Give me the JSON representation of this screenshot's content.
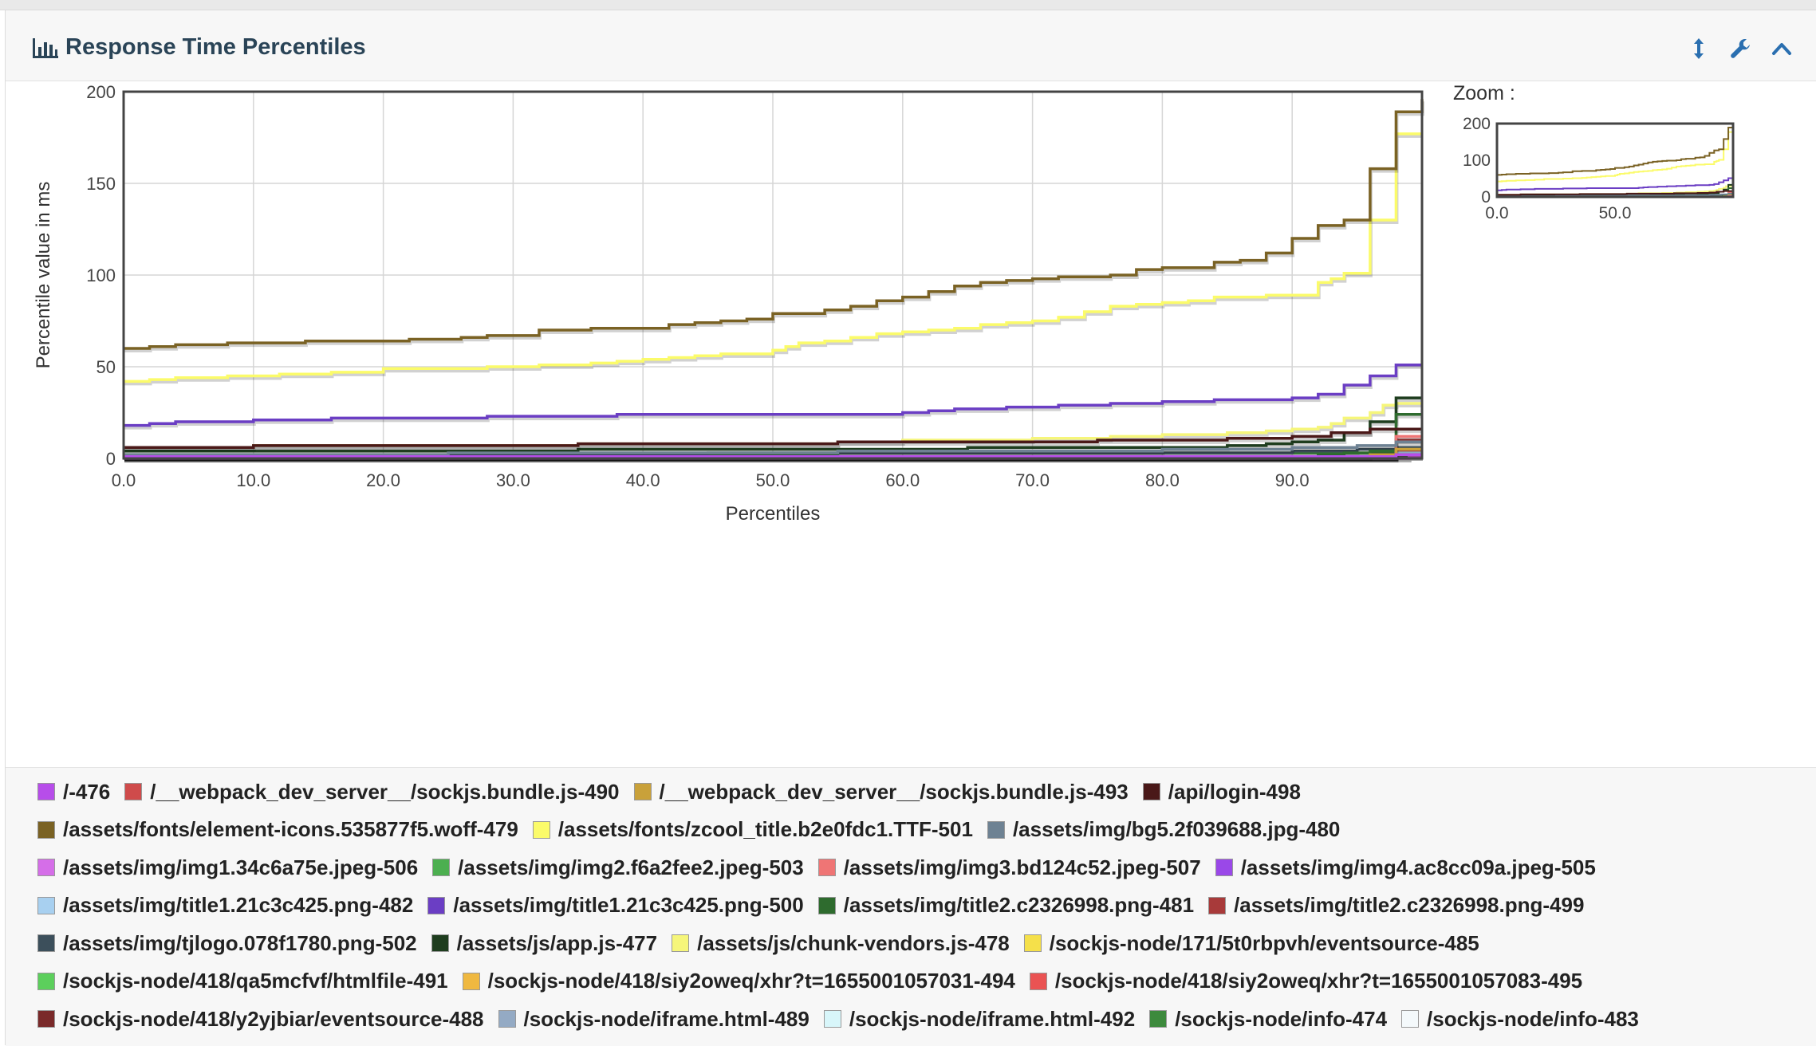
{
  "panel": {
    "title": "Response Time Percentiles",
    "icons": [
      "bar-chart-icon",
      "resize-vertical-icon",
      "wrench-icon",
      "chevron-up-icon"
    ],
    "accent": "#2a6fb0"
  },
  "zoom": {
    "label": "Zoom :",
    "y_ticks": [
      "200",
      "100",
      "0"
    ],
    "x_ticks": [
      "0.0",
      "50.0"
    ]
  },
  "chart_data": {
    "type": "line",
    "title": "",
    "xlabel": "Percentiles",
    "ylabel": "Percentile value in ms",
    "xlim": [
      0,
      100
    ],
    "ylim": [
      0,
      200
    ],
    "x_ticks": [
      "0.0",
      "10.0",
      "20.0",
      "30.0",
      "40.0",
      "50.0",
      "60.0",
      "70.0",
      "80.0",
      "90.0"
    ],
    "y_ticks": [
      "0",
      "50",
      "100",
      "150",
      "200"
    ],
    "grid": true,
    "legend_position": "bottom",
    "series": [
      {
        "name": "/-476",
        "color": "#b74dea",
        "points": [
          [
            0,
            1
          ],
          [
            96,
            1
          ],
          [
            98,
            2
          ],
          [
            100,
            2
          ]
        ]
      },
      {
        "name": "/__webpack_dev_server__/sockjs.bundle.js-490",
        "color": "#cf4b4b",
        "points": [
          [
            0,
            1
          ],
          [
            96,
            1
          ],
          [
            98,
            2
          ],
          [
            100,
            2
          ]
        ]
      },
      {
        "name": "/__webpack_dev_server__/sockjs.bundle.js-493",
        "color": "#c9a13a",
        "points": [
          [
            0,
            1
          ],
          [
            90,
            1
          ],
          [
            96,
            2
          ],
          [
            98,
            5
          ],
          [
            100,
            5
          ]
        ]
      },
      {
        "name": "/api/login-498",
        "color": "#4a1818",
        "points": [
          [
            0,
            6
          ],
          [
            6,
            6
          ],
          [
            10,
            7
          ],
          [
            30,
            7
          ],
          [
            35,
            8
          ],
          [
            50,
            8
          ],
          [
            55,
            9
          ],
          [
            70,
            9
          ],
          [
            75,
            10
          ],
          [
            85,
            11
          ],
          [
            90,
            12
          ],
          [
            93,
            14
          ],
          [
            96,
            16
          ],
          [
            98,
            16
          ],
          [
            100,
            16
          ]
        ]
      },
      {
        "name": "/assets/fonts/element-icons.535877f5.woff-479",
        "color": "#7a6224",
        "points": [
          [
            0,
            60
          ],
          [
            2,
            61
          ],
          [
            4,
            62
          ],
          [
            8,
            63
          ],
          [
            12,
            63
          ],
          [
            14,
            64
          ],
          [
            20,
            64
          ],
          [
            22,
            65
          ],
          [
            26,
            66
          ],
          [
            28,
            67
          ],
          [
            30,
            67
          ],
          [
            32,
            70
          ],
          [
            35,
            70
          ],
          [
            36,
            71
          ],
          [
            38,
            71
          ],
          [
            40,
            71
          ],
          [
            42,
            73
          ],
          [
            44,
            74
          ],
          [
            46,
            75
          ],
          [
            48,
            76
          ],
          [
            50,
            79
          ],
          [
            53,
            79
          ],
          [
            54,
            81
          ],
          [
            56,
            83
          ],
          [
            58,
            86
          ],
          [
            60,
            88
          ],
          [
            62,
            91
          ],
          [
            64,
            94
          ],
          [
            66,
            96
          ],
          [
            68,
            97
          ],
          [
            70,
            98
          ],
          [
            72,
            99
          ],
          [
            76,
            100
          ],
          [
            78,
            103
          ],
          [
            80,
            104
          ],
          [
            82,
            104
          ],
          [
            84,
            107
          ],
          [
            86,
            108
          ],
          [
            88,
            112
          ],
          [
            90,
            120
          ],
          [
            92,
            127
          ],
          [
            94,
            130
          ],
          [
            96,
            158
          ],
          [
            97,
            158
          ],
          [
            98,
            189
          ],
          [
            100,
            196
          ]
        ]
      },
      {
        "name": "/assets/fonts/zcool_title.b2e0fdc1.TTF-501",
        "color": "#fbfb6a",
        "points": [
          [
            0,
            42
          ],
          [
            2,
            43
          ],
          [
            4,
            44
          ],
          [
            8,
            45
          ],
          [
            12,
            46
          ],
          [
            16,
            47
          ],
          [
            20,
            49
          ],
          [
            24,
            49
          ],
          [
            28,
            50
          ],
          [
            32,
            51
          ],
          [
            35,
            51
          ],
          [
            36,
            52
          ],
          [
            38,
            53
          ],
          [
            40,
            54
          ],
          [
            42,
            55
          ],
          [
            44,
            56
          ],
          [
            46,
            57
          ],
          [
            48,
            57
          ],
          [
            50,
            59
          ],
          [
            51,
            61
          ],
          [
            52,
            63
          ],
          [
            54,
            64
          ],
          [
            56,
            66
          ],
          [
            58,
            68
          ],
          [
            60,
            69
          ],
          [
            62,
            70
          ],
          [
            64,
            71
          ],
          [
            66,
            73
          ],
          [
            68,
            74
          ],
          [
            70,
            75
          ],
          [
            72,
            77
          ],
          [
            74,
            80
          ],
          [
            76,
            83
          ],
          [
            78,
            84
          ],
          [
            80,
            85
          ],
          [
            82,
            86
          ],
          [
            84,
            88
          ],
          [
            86,
            88
          ],
          [
            88,
            89
          ],
          [
            90,
            89
          ],
          [
            92,
            96
          ],
          [
            93,
            98
          ],
          [
            94,
            101
          ],
          [
            96,
            130
          ],
          [
            97,
            130
          ],
          [
            98,
            177
          ],
          [
            100,
            177
          ]
        ]
      },
      {
        "name": "/assets/img/bg5.2f039688.jpg-480",
        "color": "#6e8293",
        "points": [
          [
            0,
            2
          ],
          [
            20,
            2
          ],
          [
            25,
            3
          ],
          [
            50,
            3
          ],
          [
            55,
            4
          ],
          [
            70,
            4
          ],
          [
            80,
            5
          ],
          [
            90,
            6
          ],
          [
            95,
            7
          ],
          [
            98,
            9
          ],
          [
            100,
            9
          ]
        ]
      },
      {
        "name": "/assets/img/img1.34c6a75e.jpeg-506",
        "color": "#d56ee8",
        "points": [
          [
            0,
            0
          ],
          [
            98,
            0
          ],
          [
            99,
            1
          ],
          [
            100,
            1
          ]
        ]
      },
      {
        "name": "/assets/img/img2.f6a2fee2.jpeg-503",
        "color": "#4caf50",
        "points": [
          [
            0,
            1
          ],
          [
            96,
            1
          ],
          [
            98,
            2
          ],
          [
            100,
            2
          ]
        ]
      },
      {
        "name": "/assets/img/img3.bd124c52.jpeg-507",
        "color": "#ef7575",
        "points": [
          [
            0,
            1
          ],
          [
            97,
            1
          ],
          [
            98,
            12
          ],
          [
            100,
            12
          ]
        ]
      },
      {
        "name": "/assets/img/img4.ac8cc09a.jpeg-505",
        "color": "#9a48e8",
        "points": [
          [
            0,
            1
          ],
          [
            97,
            1
          ],
          [
            98,
            2
          ],
          [
            100,
            2
          ]
        ]
      },
      {
        "name": "/assets/img/title1.21c3c425.png-482",
        "color": "#a8d0f0",
        "points": [
          [
            0,
            1
          ],
          [
            96,
            1
          ],
          [
            98,
            3
          ],
          [
            100,
            3
          ]
        ]
      },
      {
        "name": "/assets/img/title1.21c3c425.png-500",
        "color": "#6b3ec4",
        "points": [
          [
            0,
            18
          ],
          [
            2,
            19
          ],
          [
            4,
            20
          ],
          [
            8,
            20
          ],
          [
            10,
            21
          ],
          [
            14,
            21
          ],
          [
            16,
            22
          ],
          [
            26,
            22
          ],
          [
            28,
            23
          ],
          [
            36,
            23
          ],
          [
            38,
            24
          ],
          [
            58,
            24
          ],
          [
            60,
            25
          ],
          [
            62,
            26
          ],
          [
            64,
            27
          ],
          [
            68,
            28
          ],
          [
            72,
            29
          ],
          [
            76,
            30
          ],
          [
            80,
            31
          ],
          [
            84,
            32
          ],
          [
            88,
            32
          ],
          [
            90,
            33
          ],
          [
            92,
            35
          ],
          [
            94,
            40
          ],
          [
            96,
            45
          ],
          [
            98,
            51
          ],
          [
            100,
            51
          ]
        ]
      },
      {
        "name": "/assets/img/title2.c2326998.png-481",
        "color": "#2e6b2e",
        "points": [
          [
            0,
            1
          ],
          [
            90,
            1
          ],
          [
            92,
            2
          ],
          [
            94,
            3
          ],
          [
            96,
            4
          ],
          [
            98,
            24
          ],
          [
            100,
            24
          ]
        ]
      },
      {
        "name": "/assets/img/title2.c2326998.png-499",
        "color": "#a83a3a",
        "points": [
          [
            0,
            1
          ],
          [
            94,
            1
          ],
          [
            96,
            2
          ],
          [
            98,
            10
          ],
          [
            100,
            10
          ]
        ]
      },
      {
        "name": "/assets/img/tjlogo.078f1780.png-502",
        "color": "#3c4f5b",
        "points": [
          [
            0,
            2
          ],
          [
            40,
            2
          ],
          [
            45,
            3
          ],
          [
            80,
            3
          ],
          [
            90,
            4
          ],
          [
            95,
            5
          ],
          [
            98,
            6
          ],
          [
            100,
            6
          ]
        ]
      },
      {
        "name": "/assets/js/app.js-477",
        "color": "#1e3d1e",
        "points": [
          [
            0,
            4
          ],
          [
            30,
            4
          ],
          [
            35,
            5
          ],
          [
            60,
            5
          ],
          [
            65,
            6
          ],
          [
            80,
            6
          ],
          [
            85,
            7
          ],
          [
            88,
            8
          ],
          [
            90,
            9
          ],
          [
            92,
            10
          ],
          [
            94,
            14
          ],
          [
            96,
            20
          ],
          [
            98,
            33
          ],
          [
            100,
            33
          ]
        ]
      },
      {
        "name": "/assets/js/chunk-vendors.js-478",
        "color": "#f6f67a",
        "points": [
          [
            0,
            6
          ],
          [
            6,
            6
          ],
          [
            10,
            7
          ],
          [
            30,
            7
          ],
          [
            35,
            8
          ],
          [
            55,
            9
          ],
          [
            60,
            10
          ],
          [
            70,
            11
          ],
          [
            76,
            12
          ],
          [
            80,
            13
          ],
          [
            85,
            14
          ],
          [
            88,
            15
          ],
          [
            90,
            16
          ],
          [
            92,
            17
          ],
          [
            93,
            19
          ],
          [
            94,
            22
          ],
          [
            96,
            25
          ],
          [
            97,
            29
          ],
          [
            98,
            30
          ],
          [
            100,
            30
          ]
        ]
      },
      {
        "name": "/sockjs-node/171/5t0rbpvh/eventsource-485",
        "color": "#f5e04a",
        "points": [
          [
            0,
            1
          ],
          [
            95,
            1
          ],
          [
            98,
            2
          ],
          [
            100,
            2
          ]
        ]
      },
      {
        "name": "/sockjs-node/418/qa5mcfvf/htmlfile-491",
        "color": "#5ccf5c",
        "points": [
          [
            0,
            0
          ],
          [
            97,
            0
          ],
          [
            98,
            1
          ],
          [
            100,
            1
          ]
        ]
      },
      {
        "name": "/sockjs-node/418/siy2oweq/xhr?t=1655001057031-494",
        "color": "#efb840",
        "points": [
          [
            0,
            0
          ],
          [
            97,
            0
          ],
          [
            98,
            3
          ],
          [
            100,
            3
          ]
        ]
      },
      {
        "name": "/sockjs-node/418/siy2oweq/xhr?t=1655001057083-495",
        "color": "#ea5353",
        "points": [
          [
            0,
            0
          ],
          [
            97,
            0
          ],
          [
            98,
            4
          ],
          [
            100,
            4
          ]
        ]
      },
      {
        "name": "/sockjs-node/418/y2yjbiar/eventsource-488",
        "color": "#7a2a2a",
        "points": [
          [
            0,
            0
          ],
          [
            98,
            0
          ],
          [
            99,
            1
          ],
          [
            100,
            1
          ]
        ]
      },
      {
        "name": "/sockjs-node/iframe.html-489",
        "color": "#94aac4",
        "points": [
          [
            0,
            1
          ],
          [
            96,
            1
          ],
          [
            98,
            2
          ],
          [
            100,
            2
          ]
        ]
      },
      {
        "name": "/sockjs-node/iframe.html-492",
        "color": "#d8f6fa",
        "points": [
          [
            0,
            1
          ],
          [
            97,
            1
          ],
          [
            98,
            2
          ],
          [
            100,
            2
          ]
        ]
      },
      {
        "name": "/sockjs-node/info-474",
        "color": "#3d8a3d",
        "points": [
          [
            0,
            2
          ],
          [
            50,
            2
          ],
          [
            55,
            3
          ],
          [
            95,
            3
          ],
          [
            98,
            6
          ],
          [
            100,
            6
          ]
        ]
      },
      {
        "name": "/sockjs-node/info-483",
        "color": "#f4f9fb",
        "points": [
          [
            0,
            1
          ],
          [
            97,
            1
          ],
          [
            98,
            2
          ],
          [
            100,
            2
          ]
        ]
      }
    ]
  }
}
